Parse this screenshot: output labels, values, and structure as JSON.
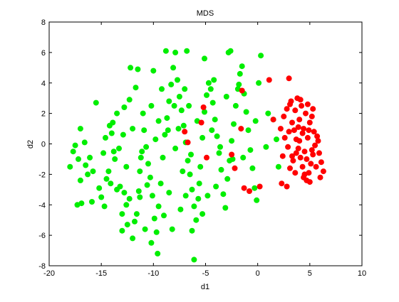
{
  "chart_data": {
    "type": "scatter",
    "title": "MDS",
    "xlabel": "d1",
    "ylabel": "d2",
    "xlim": [
      -20,
      10
    ],
    "ylim": [
      -8,
      8
    ],
    "xticks": [
      -20,
      -15,
      -10,
      -5,
      0,
      5,
      10
    ],
    "yticks": [
      -8,
      -6,
      -4,
      -2,
      0,
      2,
      4,
      6,
      8
    ],
    "xtick_labels": [
      "-20",
      "-15",
      "-10",
      "-5",
      "0",
      "5",
      "10"
    ],
    "ytick_labels": [
      "-8",
      "-6",
      "-4",
      "-2",
      "0",
      "2",
      "4",
      "6",
      "8"
    ],
    "grid": false,
    "series": [
      {
        "color": "#00ee00",
        "points": [
          [
            -18.0,
            -1.5
          ],
          [
            -17.7,
            -0.5
          ],
          [
            -17.5,
            -0.1
          ],
          [
            -17.2,
            -1.0
          ],
          [
            -17.0,
            -2.4
          ],
          [
            -17.3,
            -4.0
          ],
          [
            -16.9,
            -3.9
          ],
          [
            -17.0,
            1.0
          ],
          [
            -16.5,
            -1.4
          ],
          [
            -16.3,
            -2.0
          ],
          [
            -16.1,
            -0.9
          ],
          [
            -15.9,
            -3.8
          ],
          [
            -15.5,
            2.7
          ],
          [
            -15.0,
            -3.5
          ],
          [
            -14.8,
            -0.6
          ],
          [
            -14.6,
            0.4
          ],
          [
            -14.5,
            -2.3
          ],
          [
            -14.2,
            1.2
          ],
          [
            -14.0,
            0.7
          ],
          [
            -13.8,
            -0.5
          ],
          [
            -13.7,
            -1.0
          ],
          [
            -13.5,
            -3.0
          ],
          [
            -13.2,
            -2.8
          ],
          [
            -13.0,
            -4.6
          ],
          [
            -12.8,
            -3.2
          ],
          [
            -12.6,
            -4.0
          ],
          [
            -12.5,
            -5.3
          ],
          [
            -12.3,
            -3.6
          ],
          [
            -12.0,
            -6.2
          ],
          [
            -11.8,
            -5.1
          ],
          [
            -11.6,
            -4.6
          ],
          [
            -11.4,
            -3.1
          ],
          [
            -11.3,
            -1.8
          ],
          [
            -11.1,
            -0.5
          ],
          [
            -10.9,
            0.9
          ],
          [
            -10.7,
            -0.2
          ],
          [
            -10.5,
            -1.3
          ],
          [
            -10.3,
            -2.2
          ],
          [
            -10.1,
            -3.4
          ],
          [
            -9.9,
            -4.9
          ],
          [
            -9.7,
            -5.8
          ],
          [
            -9.5,
            -4.1
          ],
          [
            -9.3,
            -2.6
          ],
          [
            -9.1,
            -0.9
          ],
          [
            -8.9,
            0.6
          ],
          [
            -8.7,
            1.7
          ],
          [
            -8.5,
            2.8
          ],
          [
            -8.3,
            3.9
          ],
          [
            -8.1,
            5.0
          ],
          [
            -7.9,
            6.0
          ],
          [
            -7.7,
            4.2
          ],
          [
            -7.5,
            3.1
          ],
          [
            -7.3,
            2.2
          ],
          [
            -7.1,
            1.2
          ],
          [
            -6.9,
            0.1
          ],
          [
            -6.7,
            -1.1
          ],
          [
            -6.5,
            -2.0
          ],
          [
            -6.3,
            -3.0
          ],
          [
            -6.1,
            -4.1
          ],
          [
            -5.9,
            -5.0
          ],
          [
            -5.7,
            -3.6
          ],
          [
            -5.5,
            -1.5
          ],
          [
            -5.3,
            0.4
          ],
          [
            -5.1,
            2.1
          ],
          [
            -4.9,
            3.2
          ],
          [
            -4.7,
            4.0
          ],
          [
            -4.5,
            3.6
          ],
          [
            -4.3,
            2.7
          ],
          [
            -4.1,
            1.6
          ],
          [
            -3.9,
            0.5
          ],
          [
            -3.7,
            -0.6
          ],
          [
            -3.5,
            -1.7
          ],
          [
            -3.3,
            -3.3
          ],
          [
            -3.1,
            -4.2
          ],
          [
            -2.9,
            -2.3
          ],
          [
            -2.7,
            -1.1
          ],
          [
            -2.5,
            0.2
          ],
          [
            -2.3,
            1.3
          ],
          [
            -2.1,
            2.5
          ],
          [
            -1.9,
            3.6
          ],
          [
            -1.7,
            4.6
          ],
          [
            -1.5,
            5.1
          ],
          [
            -1.3,
            3.3
          ],
          [
            -1.1,
            2.1
          ],
          [
            -0.9,
            0.9
          ],
          [
            -0.7,
            -0.4
          ],
          [
            -0.5,
            -1.6
          ],
          [
            -0.3,
            -2.9
          ],
          [
            -0.1,
            -3.7
          ],
          [
            0.1,
            4.0
          ],
          [
            0.3,
            5.8
          ],
          [
            -9.6,
            -7.2
          ],
          [
            -6.1,
            -7.6
          ],
          [
            -12.2,
            5.0
          ],
          [
            -11.5,
            4.9
          ],
          [
            -10.0,
            4.8
          ],
          [
            -9.2,
            3.6
          ],
          [
            -8.8,
            6.1
          ],
          [
            -6.8,
            6.1
          ],
          [
            -5.1,
            5.6
          ],
          [
            -2.8,
            6.0
          ],
          [
            -2.6,
            6.1
          ],
          [
            -1.8,
            3.9
          ],
          [
            -11.7,
            3.7
          ],
          [
            -12.3,
            2.9
          ],
          [
            -12.8,
            2.4
          ],
          [
            -13.5,
            2.0
          ],
          [
            -13.9,
            1.4
          ],
          [
            -12.0,
            1.0
          ],
          [
            -11.0,
            2.0
          ],
          [
            -10.2,
            2.5
          ],
          [
            -9.5,
            1.5
          ],
          [
            -8.6,
            0.9
          ],
          [
            -7.9,
            -0.3
          ],
          [
            -7.2,
            -1.8
          ],
          [
            -6.4,
            -0.7
          ],
          [
            -5.6,
            -2.6
          ],
          [
            -4.8,
            -3.4
          ],
          [
            -4.0,
            -2.8
          ],
          [
            -10.6,
            -2.7
          ],
          [
            -11.3,
            -3.5
          ],
          [
            -12.6,
            -1.5
          ],
          [
            -13.3,
            -0.3
          ],
          [
            -14.3,
            -1.8
          ],
          [
            -15.2,
            -2.9
          ],
          [
            -15.8,
            -1.8
          ],
          [
            -16.6,
            0.1
          ],
          [
            -9.0,
            -4.7
          ],
          [
            -8.2,
            -5.6
          ],
          [
            -7.4,
            -4.3
          ],
          [
            -6.9,
            -3.4
          ],
          [
            -6.3,
            -5.7
          ],
          [
            -5.3,
            -4.6
          ],
          [
            -7.6,
            1.0
          ],
          [
            -6.6,
            2.5
          ],
          [
            -5.8,
            1.5
          ],
          [
            -4.4,
            0.9
          ],
          [
            -3.6,
            -0.2
          ],
          [
            -2.4,
            -1.0
          ],
          [
            -1.4,
            -0.9
          ],
          [
            1.0,
            2.0
          ],
          [
            1.5,
            1.6
          ],
          [
            -0.2,
            1.5
          ],
          [
            0.8,
            -0.2
          ],
          [
            2.0,
            -1.5
          ],
          [
            1.8,
            0.3
          ],
          [
            -14.7,
            -4.1
          ],
          [
            -13.0,
            -5.7
          ],
          [
            -10.8,
            -5.6
          ],
          [
            -10.2,
            -6.5
          ],
          [
            -8.5,
            -3.2
          ],
          [
            -3.0,
            3.1
          ],
          [
            -4.2,
            4.2
          ],
          [
            -7.0,
            3.6
          ],
          [
            -8.0,
            2.5
          ],
          [
            -9.8,
            0.3
          ],
          [
            -11.2,
            -0.9
          ],
          [
            -12.9,
            0.6
          ],
          [
            -14.1,
            -2.6
          ]
        ]
      },
      {
        "color": "#ff0000",
        "points": [
          [
            1.1,
            4.2
          ],
          [
            3.0,
            4.3
          ],
          [
            -1.5,
            3.5
          ],
          [
            -5.2,
            2.4
          ],
          [
            -5.4,
            1.4
          ],
          [
            -7.0,
            0.8
          ],
          [
            -6.7,
            0.1
          ],
          [
            -4.9,
            -0.9
          ],
          [
            -2.5,
            -0.7
          ],
          [
            -2.2,
            -1.6
          ],
          [
            -1.3,
            -2.9
          ],
          [
            -0.8,
            -3.1
          ],
          [
            0.2,
            -2.8
          ],
          [
            2.3,
            -2.6
          ],
          [
            2.8,
            -2.8
          ],
          [
            -1.6,
            1.0
          ],
          [
            1.5,
            1.6
          ],
          [
            2.2,
            1.0
          ],
          [
            2.5,
            1.8
          ],
          [
            2.8,
            2.3
          ],
          [
            3.1,
            2.6
          ],
          [
            3.3,
            1.4
          ],
          [
            3.5,
            0.9
          ],
          [
            3.7,
            0.3
          ],
          [
            3.9,
            -0.3
          ],
          [
            4.1,
            -0.9
          ],
          [
            4.3,
            -1.5
          ],
          [
            4.5,
            -2.0
          ],
          [
            4.7,
            -2.4
          ],
          [
            4.9,
            -1.9
          ],
          [
            5.1,
            -1.3
          ],
          [
            5.3,
            -0.7
          ],
          [
            5.5,
            -0.1
          ],
          [
            5.7,
            0.5
          ],
          [
            5.9,
            -0.6
          ],
          [
            6.1,
            -1.2
          ],
          [
            6.3,
            -1.8
          ],
          [
            6.0,
            -2.2
          ],
          [
            5.6,
            -1.5
          ],
          [
            5.2,
            -0.4
          ],
          [
            4.8,
            0.4
          ],
          [
            4.4,
            1.0
          ],
          [
            4.0,
            1.6
          ],
          [
            3.6,
            2.2
          ],
          [
            3.2,
            2.8
          ],
          [
            3.8,
            3.0
          ],
          [
            4.2,
            2.5
          ],
          [
            4.6,
            2.0
          ],
          [
            5.0,
            1.4
          ],
          [
            5.4,
            0.8
          ],
          [
            5.8,
            0.2
          ],
          [
            4.3,
            0.7
          ],
          [
            4.0,
            0.2
          ],
          [
            3.7,
            -0.6
          ],
          [
            3.4,
            -1.1
          ],
          [
            3.1,
            -1.6
          ],
          [
            2.9,
            -0.2
          ],
          [
            2.6,
            0.4
          ],
          [
            2.4,
            -0.8
          ],
          [
            4.5,
            -0.5
          ],
          [
            4.9,
            0.9
          ],
          [
            5.2,
            1.8
          ],
          [
            3.9,
            1.1
          ],
          [
            4.7,
            -1.0
          ],
          [
            5.0,
            -2.5
          ],
          [
            4.4,
            -2.2
          ],
          [
            3.6,
            -1.9
          ],
          [
            3.3,
            -0.8
          ],
          [
            4.1,
            2.9
          ],
          [
            4.8,
            2.6
          ],
          [
            5.3,
            2.3
          ],
          [
            3.0,
            0.8
          ]
        ]
      }
    ]
  }
}
